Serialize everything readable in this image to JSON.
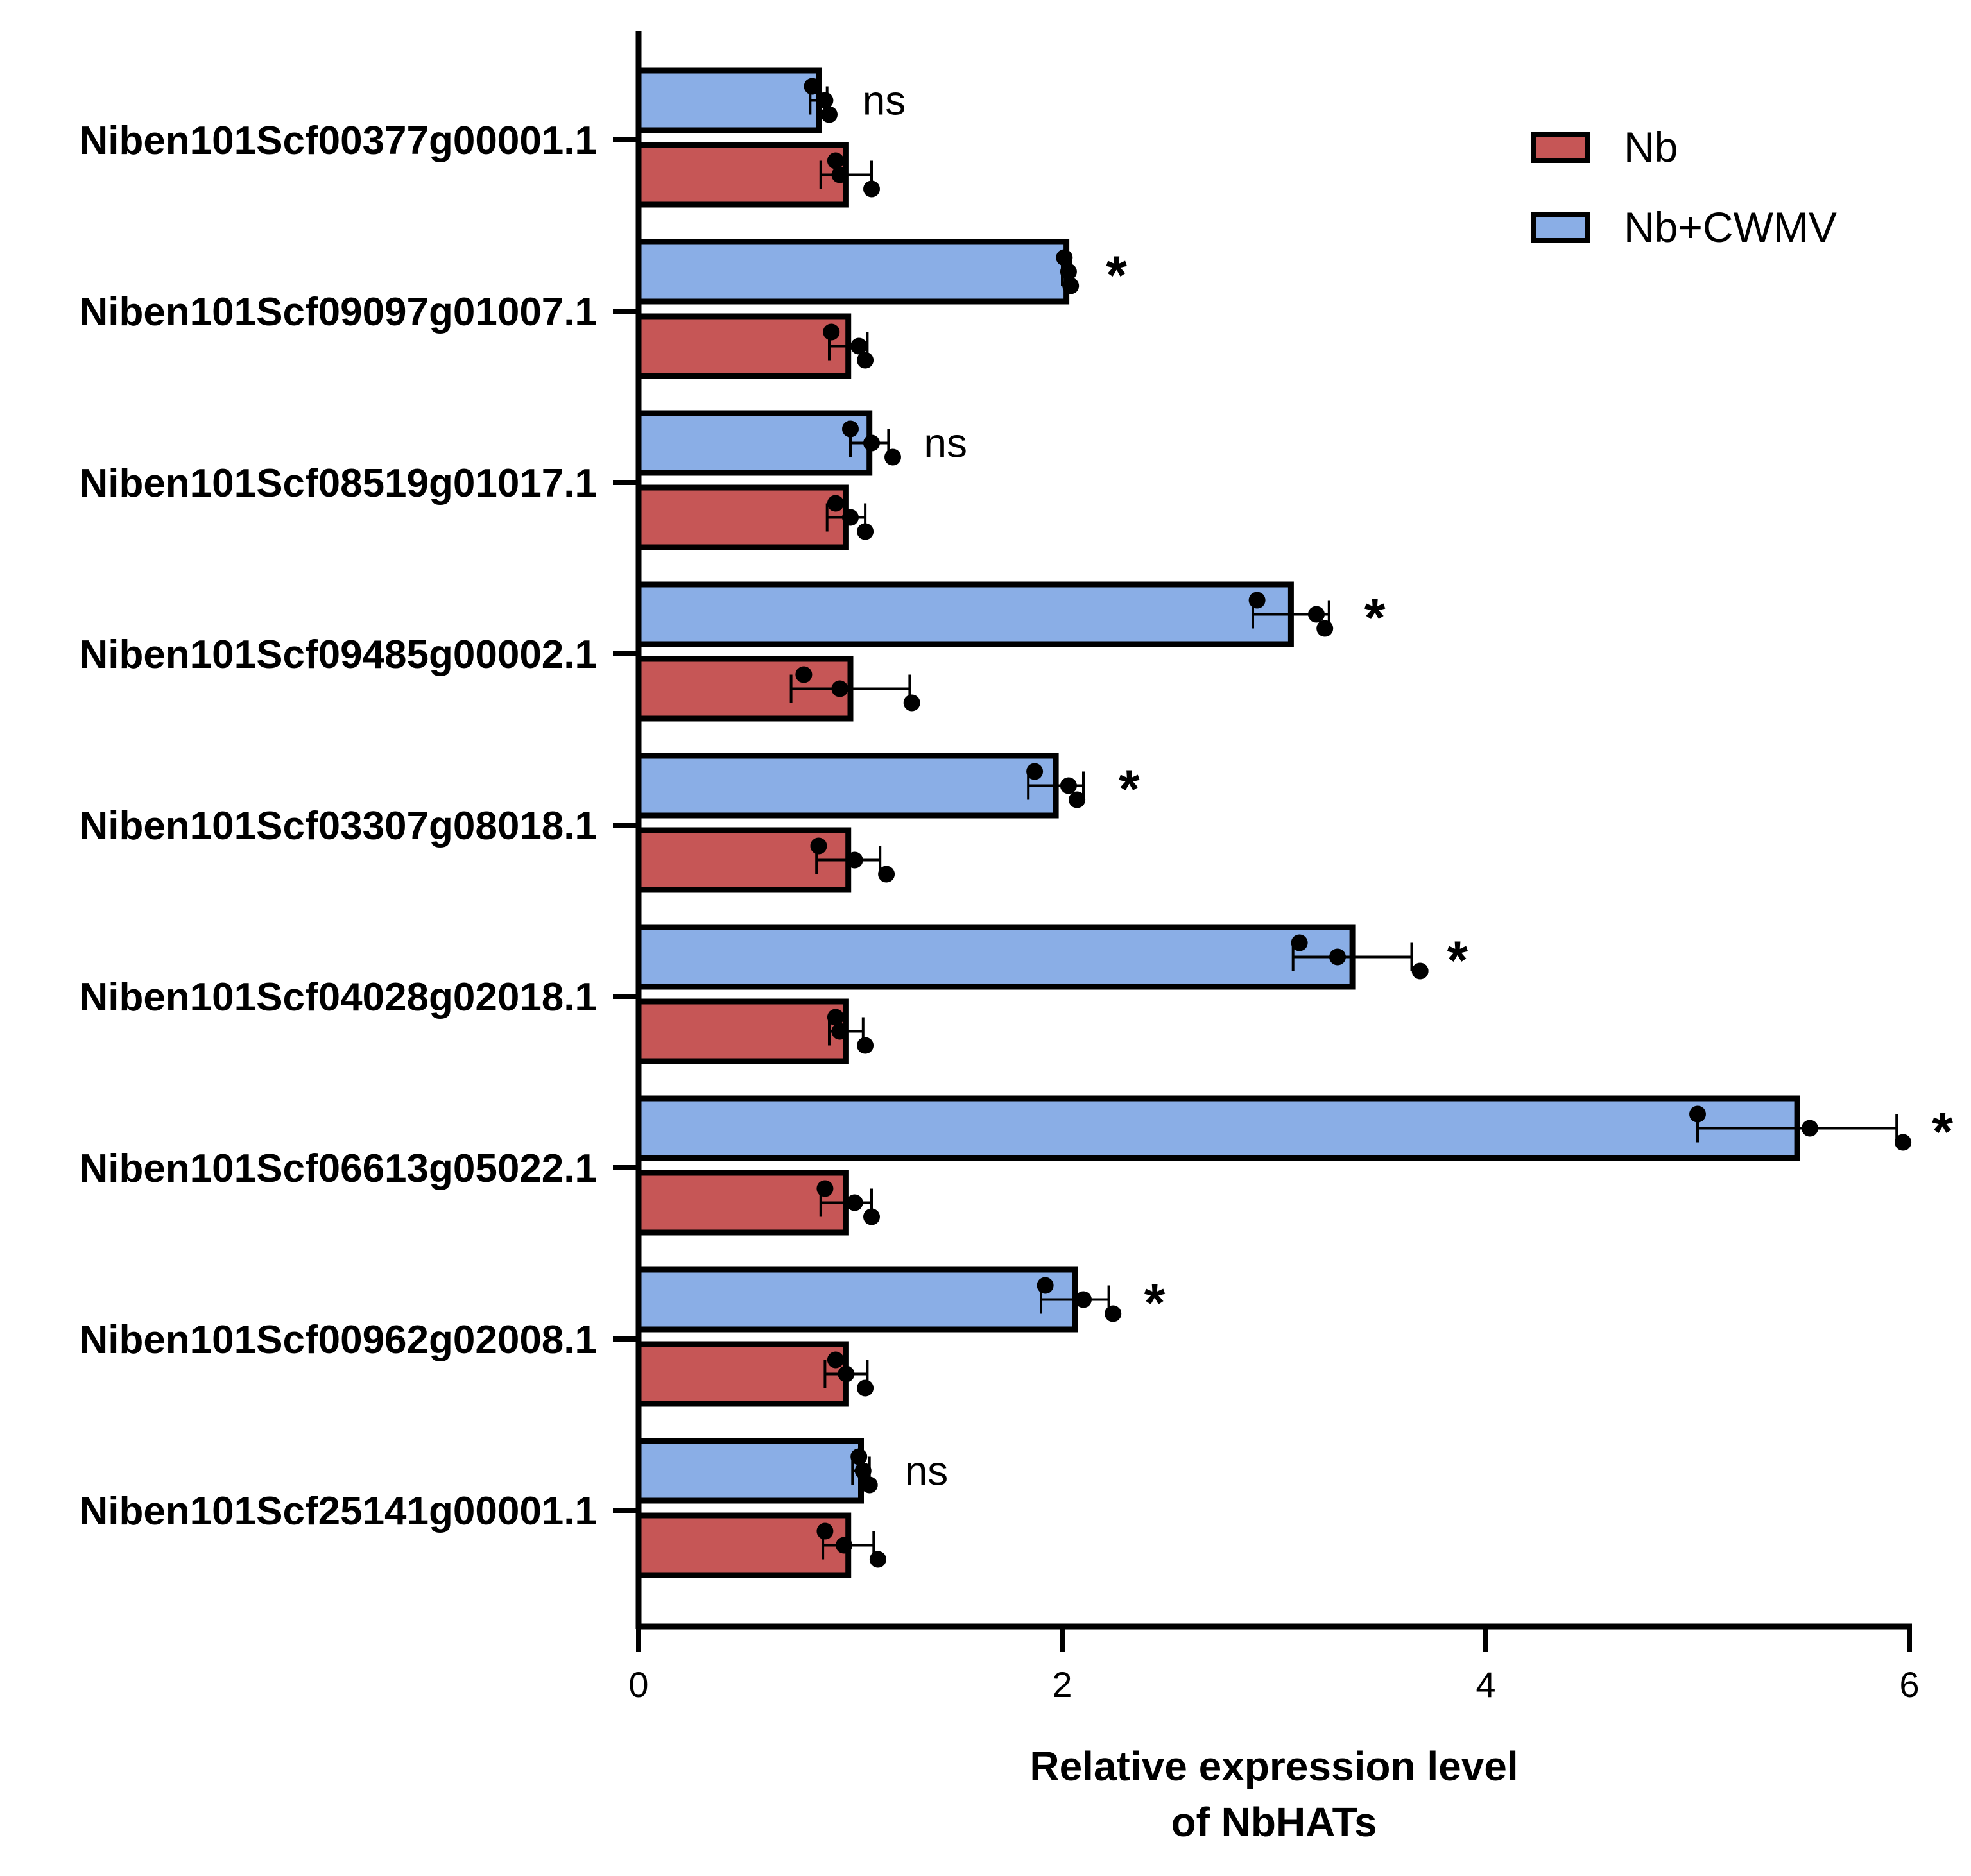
{
  "chart_data": {
    "type": "bar",
    "orientation": "horizontal",
    "categories": [
      "Niben101Scf00377g00001.1",
      "Niben101Scf09097g01007.1",
      "Niben101Scf08519g01017.1",
      "Niben101Scf09485g00002.1",
      "Niben101Scf03307g08018.1",
      "Niben101Scf04028g02018.1",
      "Niben101Scf06613g05022.1",
      "Niben101Scf00962g02008.1",
      "Niben101Scf25141g00001.1"
    ],
    "series": [
      {
        "name": "Nb+CWMV",
        "color": "#8aaee6",
        "values": [
          0.85,
          2.02,
          1.09,
          3.08,
          1.97,
          3.37,
          5.47,
          2.06,
          1.05
        ],
        "error": [
          0.04,
          0.02,
          0.09,
          0.18,
          0.13,
          0.28,
          0.47,
          0.16,
          0.04
        ],
        "points": [
          [
            0.82,
            0.88,
            0.9
          ],
          [
            2.01,
            2.03,
            2.04
          ],
          [
            1.0,
            1.1,
            1.2
          ],
          [
            2.92,
            3.2,
            3.24
          ],
          [
            1.87,
            2.03,
            2.07
          ],
          [
            3.12,
            3.3,
            3.69
          ],
          [
            5.0,
            5.53,
            5.97
          ],
          [
            1.92,
            2.1,
            2.24
          ],
          [
            1.04,
            1.06,
            1.09
          ]
        ],
        "significance": [
          "ns",
          "*",
          "ns",
          "*",
          "*",
          "*",
          "*",
          "*",
          "ns"
        ]
      },
      {
        "name": "Nb",
        "color": "#c65656",
        "values": [
          0.98,
          0.99,
          0.98,
          1.0,
          0.99,
          0.98,
          0.98,
          0.98,
          0.99
        ],
        "error": [
          0.12,
          0.09,
          0.09,
          0.28,
          0.15,
          0.08,
          0.12,
          0.1,
          0.12
        ],
        "points": [
          [
            0.93,
            0.95,
            1.1
          ],
          [
            0.91,
            1.04,
            1.07
          ],
          [
            0.93,
            1.0,
            1.07
          ],
          [
            0.78,
            0.95,
            1.29
          ],
          [
            0.85,
            1.02,
            1.17
          ],
          [
            0.93,
            0.95,
            1.07
          ],
          [
            0.88,
            1.02,
            1.1
          ],
          [
            0.93,
            0.98,
            1.07
          ],
          [
            0.88,
            0.97,
            1.13
          ]
        ]
      }
    ],
    "xlabel": "Relative expression level of NbHATs",
    "xlim": [
      0,
      6
    ],
    "xticks": [
      0,
      2,
      4,
      6
    ],
    "legend_position": "top-right",
    "grid": false
  }
}
